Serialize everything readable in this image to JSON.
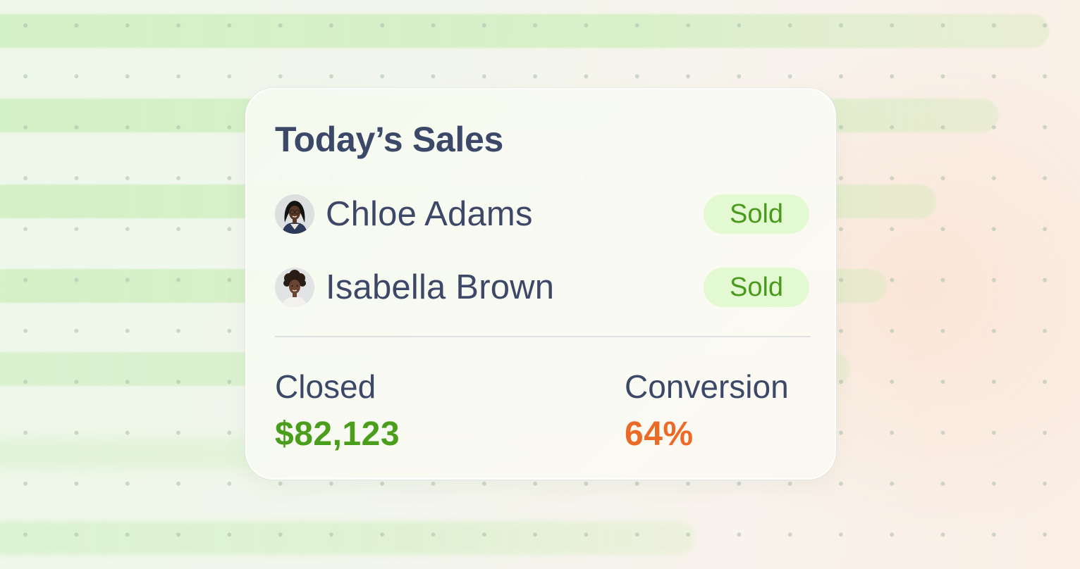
{
  "card": {
    "title": "Today’s Sales",
    "sales": [
      {
        "name": "Chloe Adams",
        "status": "Sold",
        "avatar_icon": "woman-with-glasses-avatar"
      },
      {
        "name": "Isabella Brown",
        "status": "Sold",
        "avatar_icon": "woman-curly-hair-avatar"
      }
    ],
    "stats": {
      "closed_label": "Closed",
      "closed_value": "$82,123",
      "conversion_label": "Conversion",
      "conversion_value": "64%"
    }
  },
  "colors": {
    "title_text": "#3b4868",
    "sold_badge_bg": "#e2f9d2",
    "sold_badge_text": "#4a9a1c",
    "closed_value": "#4a9e1c",
    "conversion_value": "#ea6a26"
  }
}
